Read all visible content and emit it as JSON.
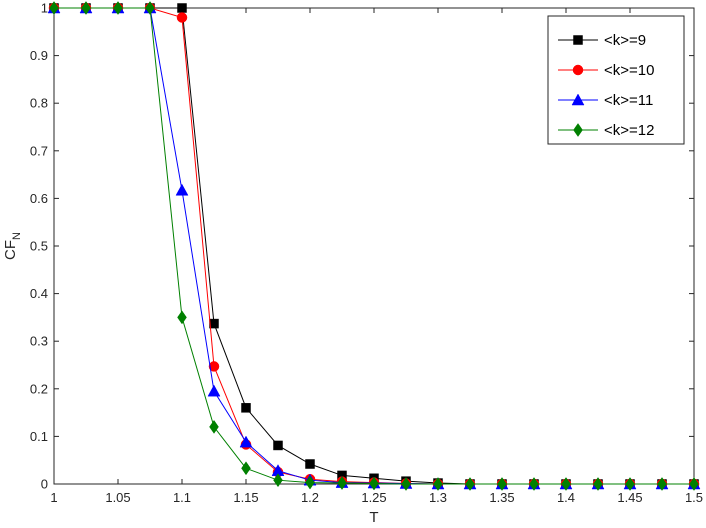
{
  "chart_data": {
    "type": "line",
    "xlabel": "T",
    "ylabel": "CF",
    "ylabel_subscript": "N",
    "xlim": [
      1,
      1.5
    ],
    "ylim": [
      0,
      1
    ],
    "xticks": [
      "1",
      "1.05",
      "1.1",
      "1.15",
      "1.2",
      "1.25",
      "1.3",
      "1.35",
      "1.4",
      "1.45",
      "1.5"
    ],
    "yticks": [
      "0",
      "0.1",
      "0.2",
      "0.3",
      "0.4",
      "0.5",
      "0.6",
      "0.7",
      "0.8",
      "0.9",
      "1"
    ],
    "grid": false,
    "legend_position": "top-right",
    "x": [
      1,
      1.025,
      1.05,
      1.075,
      1.1,
      1.125,
      1.15,
      1.175,
      1.2,
      1.225,
      1.25,
      1.275,
      1.3,
      1.325,
      1.35,
      1.375,
      1.4,
      1.425,
      1.45,
      1.475,
      1.5
    ],
    "series": [
      {
        "name": "<k>=9",
        "color": "#000000",
        "marker": "square",
        "values": [
          1,
          1,
          1,
          1,
          1,
          0.337,
          0.16,
          0.081,
          0.042,
          0.018,
          0.012,
          0.006,
          0.002,
          0,
          0,
          0,
          0,
          0,
          0,
          0,
          0
        ]
      },
      {
        "name": "<k>=10",
        "color": "#ff0000",
        "marker": "circle",
        "values": [
          1,
          1,
          1,
          1,
          0.98,
          0.247,
          0.083,
          0.025,
          0.01,
          0.005,
          0.003,
          0.001,
          0,
          0,
          0,
          0,
          0,
          0,
          0,
          0,
          0
        ]
      },
      {
        "name": "<k>=11",
        "color": "#0000ff",
        "marker": "triangle",
        "values": [
          1,
          1,
          1,
          1,
          0.617,
          0.195,
          0.088,
          0.028,
          0.008,
          0.003,
          0.002,
          0.001,
          0,
          0,
          0,
          0,
          0,
          0,
          0,
          0,
          0
        ]
      },
      {
        "name": "<k>=12",
        "color": "#008000",
        "marker": "diamond",
        "values": [
          1,
          1,
          1,
          1,
          0.35,
          0.12,
          0.033,
          0.008,
          0.003,
          0.002,
          0.001,
          0,
          0,
          0,
          0,
          0,
          0,
          0,
          0,
          0,
          0
        ]
      }
    ]
  }
}
